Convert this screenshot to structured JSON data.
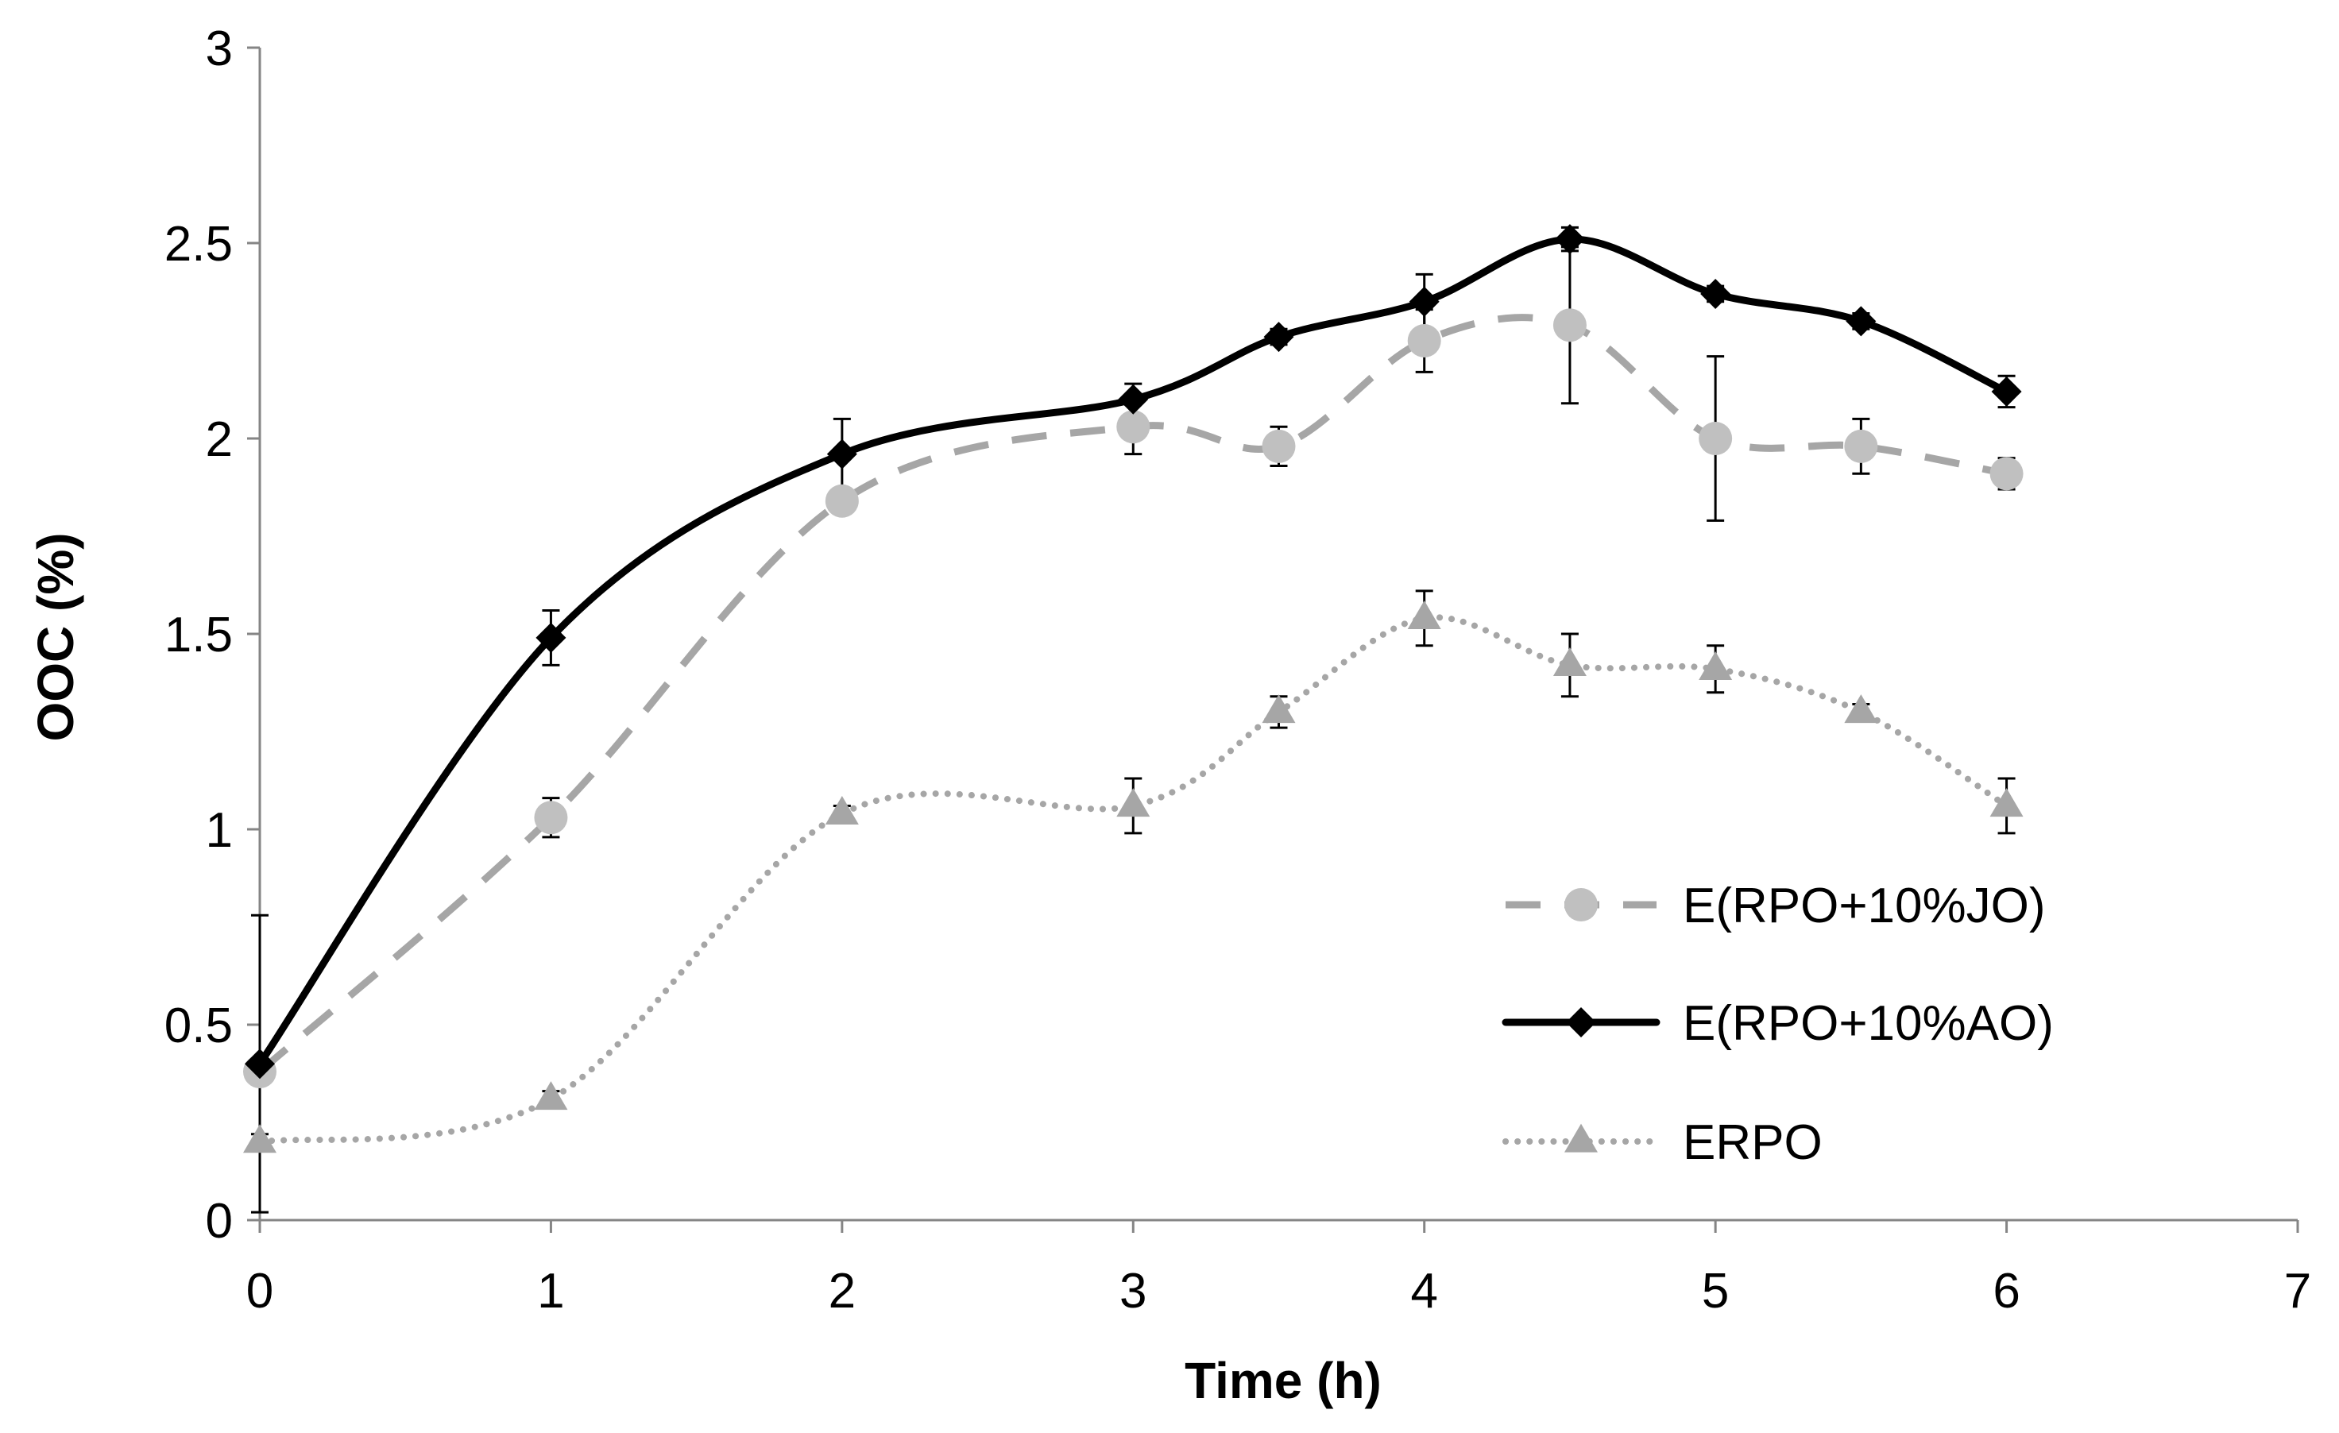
{
  "chart_data": {
    "type": "line",
    "title": "",
    "xlabel": "Time (h)",
    "ylabel": "OOC (%)",
    "xlim": [
      0,
      7
    ],
    "ylim": [
      0,
      3
    ],
    "xticks": [
      0,
      1,
      2,
      3,
      4,
      5,
      6,
      7
    ],
    "yticks": [
      0,
      0.5,
      1,
      1.5,
      2,
      2.5,
      3
    ],
    "xtick_labels": [
      "0",
      "1",
      "2",
      "3",
      "4",
      "5",
      "6",
      "7"
    ],
    "ytick_labels": [
      "0",
      "0.5",
      "1",
      "1.5",
      "2",
      "2.5",
      "3"
    ],
    "grid": false,
    "legend_position": "bottom-right",
    "series": [
      {
        "name": "E(RPO+10%JO)",
        "color": "#a6a6a6",
        "marker_color": "#c0c0c0",
        "line_style": "dashed",
        "marker": "circle",
        "x": [
          0,
          1,
          2,
          3,
          3.5,
          4,
          4.5,
          5,
          5.5,
          6
        ],
        "values": [
          0.38,
          1.03,
          1.84,
          2.03,
          1.98,
          2.25,
          2.29,
          2.0,
          1.98,
          1.91
        ],
        "error": [
          0.0,
          0.05,
          0.0,
          0.07,
          0.05,
          0.08,
          0.2,
          0.21,
          0.07,
          0.04
        ]
      },
      {
        "name": "E(RPO+10%AO)",
        "color": "#000000",
        "marker_color": "#000000",
        "line_style": "solid",
        "marker": "diamond",
        "x": [
          0,
          1,
          2,
          3,
          3.5,
          4,
          4.5,
          5,
          5.5,
          6
        ],
        "values": [
          0.4,
          1.49,
          1.96,
          2.1,
          2.26,
          2.35,
          2.51,
          2.37,
          2.3,
          2.12
        ],
        "error": [
          0.38,
          0.07,
          0.09,
          0.04,
          0.02,
          0.07,
          0.03,
          0.02,
          0.02,
          0.04
        ]
      },
      {
        "name": "ERPO",
        "color": "#a6a6a6",
        "marker_color": "#a6a6a6",
        "line_style": "dotted",
        "marker": "triangle",
        "x": [
          0,
          1,
          2,
          3,
          3.5,
          4,
          4.5,
          5,
          5.5,
          6
        ],
        "values": [
          0.2,
          0.31,
          1.04,
          1.06,
          1.3,
          1.54,
          1.42,
          1.41,
          1.3,
          1.06
        ],
        "error": [
          0.02,
          0.02,
          0.02,
          0.07,
          0.04,
          0.07,
          0.08,
          0.06,
          0.02,
          0.07
        ]
      }
    ]
  }
}
